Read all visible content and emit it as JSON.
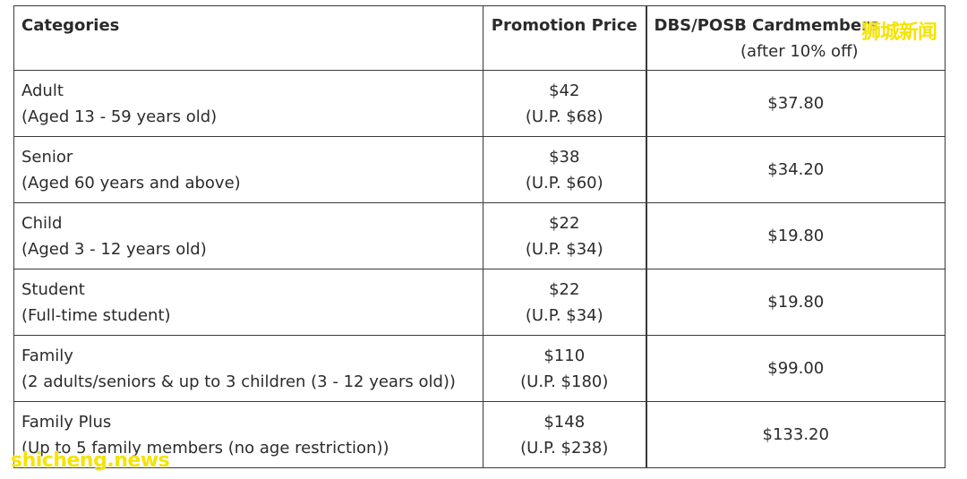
{
  "table": {
    "headers": {
      "categories": "Categories",
      "promotion_price": "Promotion Price",
      "dbs_main": "DBS/POSB Cardmembers",
      "dbs_sub": "(after 10% off)"
    },
    "rows": [
      {
        "category": "Adult",
        "detail": "(Aged 13 - 59 years old)",
        "price": "$42",
        "usual_price": "(U.P. $68)",
        "dbs_price": "$37.80"
      },
      {
        "category": "Senior",
        "detail": "(Aged 60 years and above)",
        "price": "$38",
        "usual_price": "(U.P. $60)",
        "dbs_price": "$34.20"
      },
      {
        "category": "Child",
        "detail": "(Aged 3 - 12 years old)",
        "price": "$22",
        "usual_price": "(U.P. $34)",
        "dbs_price": "$19.80"
      },
      {
        "category": "Student",
        "detail": "(Full-time student)",
        "price": "$22",
        "usual_price": "(U.P. $34)",
        "dbs_price": "$19.80"
      },
      {
        "category": "Family",
        "detail": "(2 adults/seniors & up to 3 children (3 - 12 years old))",
        "price": "$110",
        "usual_price": "(U.P. $180)",
        "dbs_price": "$99.00"
      },
      {
        "category": "Family Plus",
        "detail": "(Up to 5 family members (no age restriction))",
        "price": "$148",
        "usual_price": "(U.P. $238)",
        "dbs_price": "$133.20"
      }
    ]
  },
  "watermarks": {
    "top_right": "狮城新闻",
    "bottom_left": "shicheng.news"
  },
  "colors": {
    "watermark": "#f5e300",
    "border": "#3a3a3a",
    "text": "#2b2b2b"
  }
}
